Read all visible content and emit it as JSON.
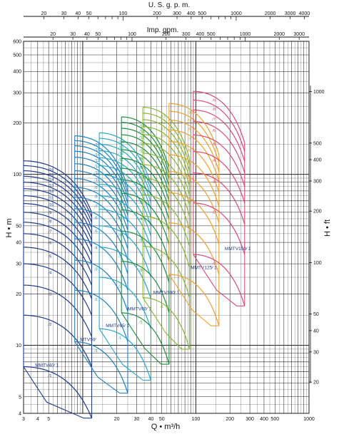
{
  "chart_data": {
    "type": "line",
    "title": "",
    "top_axis_1": {
      "label": "U. S. g. p. m.",
      "ticks": [
        "20",
        "30",
        "40",
        "50",
        "100",
        "200",
        "300",
        "400",
        "500",
        "1000",
        "2000",
        "3000",
        "4000"
      ],
      "tick_values": [
        20,
        30,
        40,
        50,
        100,
        200,
        300,
        400,
        500,
        1000,
        2000,
        3000,
        4000
      ]
    },
    "top_axis_2": {
      "label": "Imp. gpm.",
      "ticks": [
        "20",
        "30",
        "40",
        "50",
        "100",
        "200",
        "300",
        "400",
        "500",
        "1000",
        "2000",
        "3000"
      ],
      "tick_values": [
        20,
        30,
        40,
        50,
        100,
        200,
        300,
        400,
        500,
        1000,
        2000,
        3000
      ]
    },
    "x_axis": {
      "label": "Q • m³/h",
      "scale": "log",
      "range": [
        3,
        1000
      ],
      "ticks": [
        "3",
        "4",
        "5",
        "20",
        "30",
        "40",
        "50",
        "100",
        "200",
        "300",
        "400",
        "500",
        "1000"
      ],
      "tick_values": [
        3,
        4,
        5,
        20,
        30,
        40,
        50,
        100,
        200,
        300,
        400,
        500,
        1000
      ]
    },
    "y_axis_left": {
      "label": "H • m",
      "scale": "log",
      "range": [
        4,
        600
      ],
      "ticks": [
        "4",
        "5",
        "10",
        "20",
        "30",
        "40",
        "50",
        "100",
        "200",
        "300",
        "400",
        "500",
        "600"
      ],
      "tick_values": [
        4,
        5,
        10,
        20,
        30,
        40,
        50,
        100,
        200,
        300,
        400,
        500,
        600
      ]
    },
    "y_axis_right": {
      "label": "H • ft",
      "scale": "log",
      "ticks": [
        "20",
        "30",
        "40",
        "50",
        "100",
        "200",
        "300",
        "400",
        "500",
        "1000"
      ],
      "tick_values": [
        20,
        30,
        40,
        50,
        100,
        200,
        300,
        400,
        500,
        1000
      ]
    },
    "grid": true,
    "series": [
      {
        "name": "MMTV40",
        "label": "MMTV40∕ 1",
        "color": "#1f3a8a",
        "q_min": 3,
        "q_max": 12,
        "h1": 7.5,
        "stages": 16,
        "label_pos": [
          3.8,
          7.5
        ]
      },
      {
        "name": "MMTV50",
        "label": "MTV50∕",
        "color": "#1f7fc0",
        "q_min": 8.5,
        "q_max": 25,
        "h1": 10.5,
        "stages": 16,
        "label_pos": [
          9.5,
          10.6
        ]
      },
      {
        "name": "MMTV65",
        "label": "MMTV65∕ 1",
        "color": "#2aa6c8",
        "q_min": 14,
        "q_max": 40,
        "h1": 12.5,
        "stages": 14,
        "label_pos": [
          16,
          12.8
        ]
      },
      {
        "name": "MMTV80",
        "label": "MMTV80∕ 1",
        "color": "#1f8c3a",
        "q_min": 22,
        "q_max": 58,
        "h1": 15.5,
        "stages": 14,
        "label_pos": [
          25,
          16
        ]
      },
      {
        "name": "MMTV100",
        "label": "MMTV100∕ 1",
        "color": "#8ab534",
        "q_min": 34,
        "q_max": 88,
        "h1": 19,
        "stages": 13,
        "label_pos": [
          42,
          20
        ]
      },
      {
        "name": "MMTV125",
        "label": "MMTV125∕ 1",
        "color": "#f0a030",
        "q_min": 58,
        "q_max": 160,
        "h1": 26,
        "stages": 10,
        "label_pos": [
          90,
          28
        ]
      },
      {
        "name": "MMTV150",
        "label": "MMTV150∕ 1",
        "color": "#d84a7a",
        "q_min": 95,
        "q_max": 270,
        "h1": 34,
        "stages": 9,
        "label_pos": [
          180,
          36
        ]
      }
    ]
  }
}
